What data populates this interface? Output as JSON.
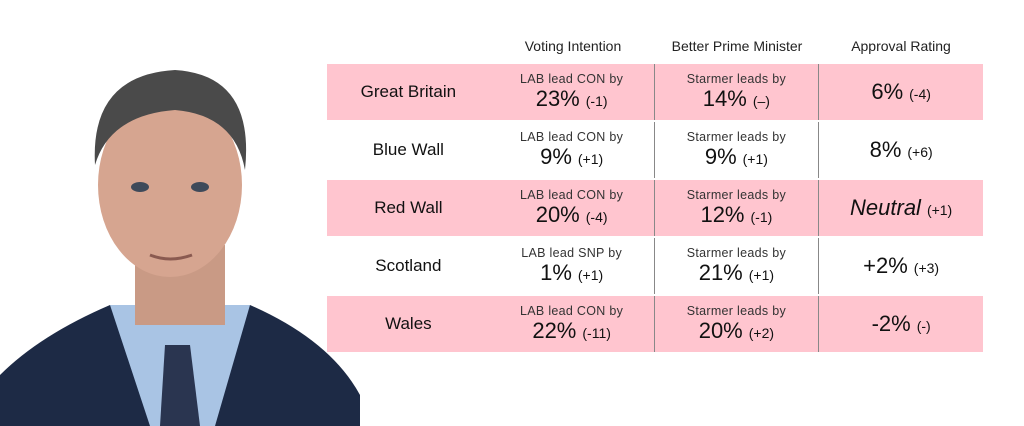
{
  "headers": [
    "Voting Intention",
    "Better Prime Minister",
    "Approval Rating"
  ],
  "rows": [
    {
      "region": "Great Britain",
      "vi_label": "LAB lead CON by",
      "vi_value": "23%",
      "vi_change": "(-1)",
      "pm_label": "Starmer leads by",
      "pm_value": "14%",
      "pm_change": "(–)",
      "ap_value": "6%",
      "ap_change": "(-4)",
      "highlight": true
    },
    {
      "region": "Blue Wall",
      "vi_label": "LAB lead CON by",
      "vi_value": "9%",
      "vi_change": "(+1)",
      "pm_label": "Starmer leads by",
      "pm_value": "9%",
      "pm_change": "(+1)",
      "ap_value": "8%",
      "ap_change": "(+6)",
      "highlight": false
    },
    {
      "region": "Red Wall",
      "vi_label": "LAB lead CON by",
      "vi_value": "20%",
      "vi_change": "(-4)",
      "pm_label": "Starmer leads by",
      "pm_value": "12%",
      "pm_change": "(-1)",
      "ap_value": "Neutral",
      "ap_change": "(+1)",
      "highlight": true
    },
    {
      "region": "Scotland",
      "vi_label": "LAB lead SNP by",
      "vi_value": "1%",
      "vi_change": "(+1)",
      "pm_label": "Starmer leads by",
      "pm_value": "21%",
      "pm_change": "(+1)",
      "ap_value": "+2%",
      "ap_change": "(+3)",
      "highlight": false
    },
    {
      "region": "Wales",
      "vi_label": "LAB lead CON by",
      "vi_value": "22%",
      "vi_change": "(-11)",
      "pm_label": "Starmer leads by",
      "pm_value": "20%",
      "pm_change": "(+2)",
      "ap_value": "-2%",
      "ap_change": "(-)",
      "highlight": true
    }
  ],
  "colors": {
    "highlight": "#ffc5cf",
    "divider": "#888888"
  }
}
